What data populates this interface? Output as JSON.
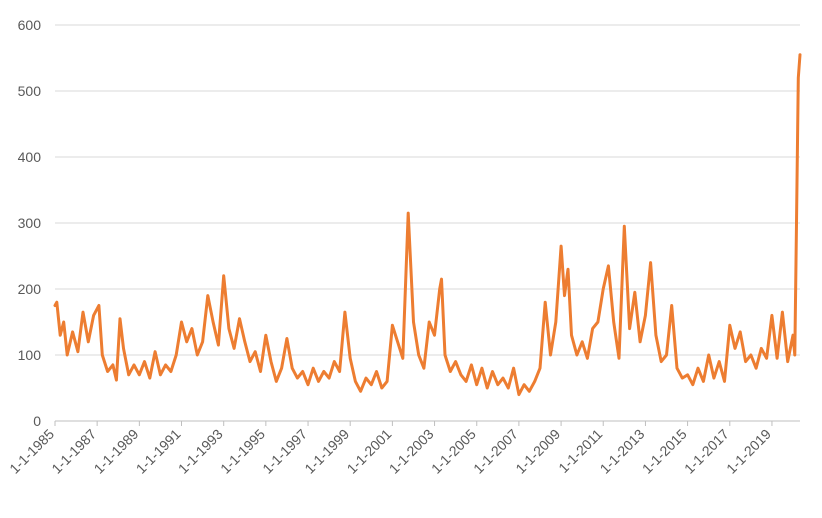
{
  "chart_data": {
    "type": "line",
    "title": "",
    "xlabel": "",
    "ylabel": "",
    "ylim": [
      0,
      600
    ],
    "y_ticks": [
      0,
      100,
      200,
      300,
      400,
      500,
      600
    ],
    "x_range": [
      "1985-01-01",
      "2020-05-01"
    ],
    "x_tick_labels": [
      "1-1-1985",
      "1-1-1987",
      "1-1-1989",
      "1-1-1991",
      "1-1-1993",
      "1-1-1995",
      "1-1-1997",
      "1-1-1999",
      "1-1-2001",
      "1-1-2003",
      "1-1-2005",
      "1-1-2007",
      "1-1-2009",
      "1-1-2011",
      "1-1-2013",
      "1-1-2015",
      "1-1-2017",
      "1-1-2019"
    ],
    "grid": true,
    "legend": "none",
    "series": [
      {
        "color": "#ED7D31",
        "points": [
          [
            "1985-01-01",
            175
          ],
          [
            "1985-02-01",
            180
          ],
          [
            "1985-04-01",
            130
          ],
          [
            "1985-06-01",
            150
          ],
          [
            "1985-08-01",
            100
          ],
          [
            "1985-11-01",
            135
          ],
          [
            "1986-02-01",
            105
          ],
          [
            "1986-05-01",
            165
          ],
          [
            "1986-08-01",
            120
          ],
          [
            "1986-11-01",
            160
          ],
          [
            "1987-02-01",
            175
          ],
          [
            "1987-04-01",
            100
          ],
          [
            "1987-07-01",
            75
          ],
          [
            "1987-10-01",
            85
          ],
          [
            "1987-12-01",
            62
          ],
          [
            "1988-02-01",
            155
          ],
          [
            "1988-04-01",
            110
          ],
          [
            "1988-07-01",
            70
          ],
          [
            "1988-10-01",
            85
          ],
          [
            "1989-01-01",
            70
          ],
          [
            "1989-04-01",
            90
          ],
          [
            "1989-07-01",
            65
          ],
          [
            "1989-10-01",
            105
          ],
          [
            "1990-01-01",
            70
          ],
          [
            "1990-04-01",
            85
          ],
          [
            "1990-07-01",
            75
          ],
          [
            "1990-10-01",
            100
          ],
          [
            "1991-01-01",
            150
          ],
          [
            "1991-04-01",
            120
          ],
          [
            "1991-07-01",
            140
          ],
          [
            "1991-10-01",
            100
          ],
          [
            "1992-01-01",
            120
          ],
          [
            "1992-04-01",
            190
          ],
          [
            "1992-07-01",
            150
          ],
          [
            "1992-10-01",
            115
          ],
          [
            "1993-01-01",
            220
          ],
          [
            "1993-04-01",
            140
          ],
          [
            "1993-07-01",
            110
          ],
          [
            "1993-10-01",
            155
          ],
          [
            "1994-01-01",
            120
          ],
          [
            "1994-04-01",
            90
          ],
          [
            "1994-07-01",
            105
          ],
          [
            "1994-10-01",
            75
          ],
          [
            "1995-01-01",
            130
          ],
          [
            "1995-04-01",
            90
          ],
          [
            "1995-07-01",
            60
          ],
          [
            "1995-10-01",
            80
          ],
          [
            "1996-01-01",
            125
          ],
          [
            "1996-04-01",
            80
          ],
          [
            "1996-07-01",
            65
          ],
          [
            "1996-10-01",
            75
          ],
          [
            "1997-01-01",
            55
          ],
          [
            "1997-04-01",
            80
          ],
          [
            "1997-07-01",
            60
          ],
          [
            "1997-10-01",
            75
          ],
          [
            "1998-01-01",
            65
          ],
          [
            "1998-04-01",
            90
          ],
          [
            "1998-07-01",
            75
          ],
          [
            "1998-10-01",
            165
          ],
          [
            "1999-01-01",
            95
          ],
          [
            "1999-04-01",
            60
          ],
          [
            "1999-07-01",
            45
          ],
          [
            "1999-10-01",
            65
          ],
          [
            "2000-01-01",
            55
          ],
          [
            "2000-04-01",
            75
          ],
          [
            "2000-07-01",
            50
          ],
          [
            "2000-10-01",
            60
          ],
          [
            "2001-01-01",
            145
          ],
          [
            "2001-04-01",
            120
          ],
          [
            "2001-07-01",
            95
          ],
          [
            "2001-10-01",
            315
          ],
          [
            "2002-01-01",
            150
          ],
          [
            "2002-04-01",
            100
          ],
          [
            "2002-07-01",
            80
          ],
          [
            "2002-10-01",
            150
          ],
          [
            "2003-01-01",
            130
          ],
          [
            "2003-04-01",
            200
          ],
          [
            "2003-05-01",
            215
          ],
          [
            "2003-07-01",
            100
          ],
          [
            "2003-10-01",
            75
          ],
          [
            "2004-01-01",
            90
          ],
          [
            "2004-04-01",
            70
          ],
          [
            "2004-07-01",
            60
          ],
          [
            "2004-10-01",
            85
          ],
          [
            "2005-01-01",
            55
          ],
          [
            "2005-04-01",
            80
          ],
          [
            "2005-07-01",
            50
          ],
          [
            "2005-10-01",
            75
          ],
          [
            "2006-01-01",
            55
          ],
          [
            "2006-04-01",
            65
          ],
          [
            "2006-07-01",
            50
          ],
          [
            "2006-10-01",
            80
          ],
          [
            "2007-01-01",
            40
          ],
          [
            "2007-04-01",
            55
          ],
          [
            "2007-07-01",
            45
          ],
          [
            "2007-10-01",
            60
          ],
          [
            "2008-01-01",
            80
          ],
          [
            "2008-04-01",
            180
          ],
          [
            "2008-07-01",
            100
          ],
          [
            "2008-10-01",
            150
          ],
          [
            "2009-01-01",
            265
          ],
          [
            "2009-03-01",
            190
          ],
          [
            "2009-05-01",
            230
          ],
          [
            "2009-07-01",
            130
          ],
          [
            "2009-10-01",
            100
          ],
          [
            "2010-01-01",
            120
          ],
          [
            "2010-04-01",
            95
          ],
          [
            "2010-07-01",
            140
          ],
          [
            "2010-10-01",
            150
          ],
          [
            "2011-01-01",
            200
          ],
          [
            "2011-04-01",
            235
          ],
          [
            "2011-07-01",
            150
          ],
          [
            "2011-10-01",
            95
          ],
          [
            "2012-01-01",
            295
          ],
          [
            "2012-04-01",
            140
          ],
          [
            "2012-07-01",
            195
          ],
          [
            "2012-10-01",
            120
          ],
          [
            "2013-01-01",
            160
          ],
          [
            "2013-04-01",
            240
          ],
          [
            "2013-07-01",
            130
          ],
          [
            "2013-10-01",
            90
          ],
          [
            "2014-01-01",
            100
          ],
          [
            "2014-04-01",
            175
          ],
          [
            "2014-07-01",
            80
          ],
          [
            "2014-10-01",
            65
          ],
          [
            "2015-01-01",
            70
          ],
          [
            "2015-04-01",
            55
          ],
          [
            "2015-07-01",
            80
          ],
          [
            "2015-10-01",
            60
          ],
          [
            "2016-01-01",
            100
          ],
          [
            "2016-04-01",
            65
          ],
          [
            "2016-07-01",
            90
          ],
          [
            "2016-10-01",
            60
          ],
          [
            "2017-01-01",
            145
          ],
          [
            "2017-04-01",
            110
          ],
          [
            "2017-07-01",
            135
          ],
          [
            "2017-10-01",
            90
          ],
          [
            "2018-01-01",
            100
          ],
          [
            "2018-04-01",
            80
          ],
          [
            "2018-07-01",
            110
          ],
          [
            "2018-10-01",
            95
          ],
          [
            "2019-01-01",
            160
          ],
          [
            "2019-04-01",
            95
          ],
          [
            "2019-07-01",
            165
          ],
          [
            "2019-10-01",
            90
          ],
          [
            "2020-01-01",
            130
          ],
          [
            "2020-02-01",
            100
          ],
          [
            "2020-03-01",
            300
          ],
          [
            "2020-04-01",
            520
          ],
          [
            "2020-05-01",
            555
          ]
        ]
      }
    ]
  }
}
